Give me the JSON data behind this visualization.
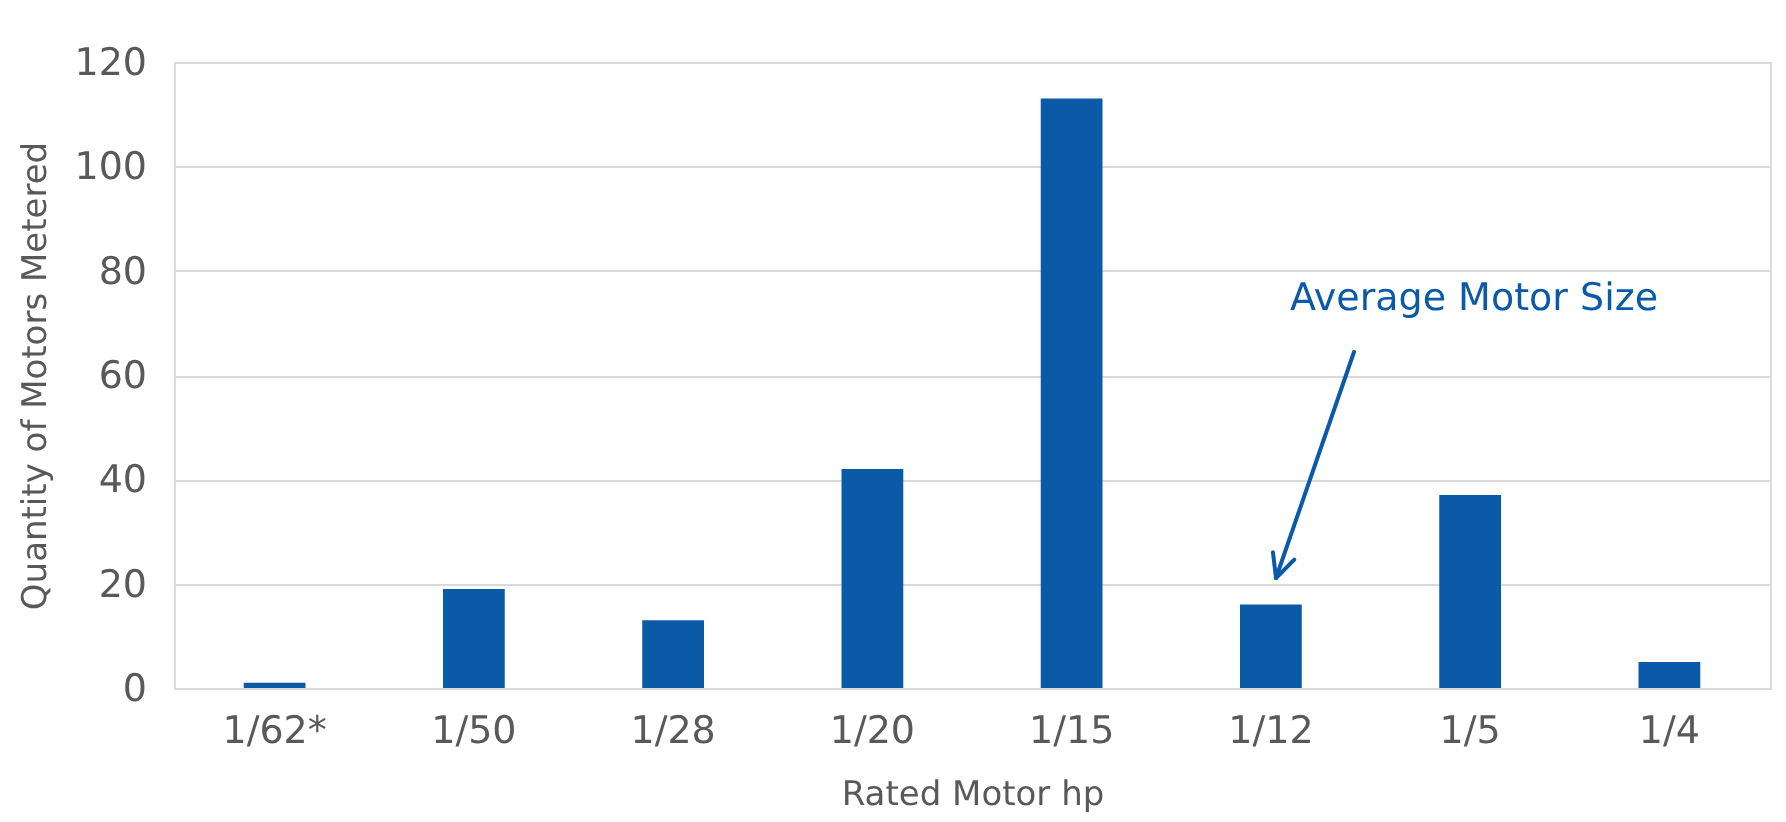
{
  "chart_data": {
    "type": "bar",
    "xlabel": "Rated Motor hp",
    "ylabel": "Quantity of Motors Metered",
    "categories": [
      "1/62*",
      "1/50",
      "1/28",
      "1/20",
      "1/15",
      "1/12",
      "1/5",
      "1/4"
    ],
    "values": [
      1,
      19,
      13,
      42,
      113,
      16,
      37,
      5
    ],
    "color": "#0b5aa8",
    "ylim": [
      0,
      120
    ],
    "yticks": [
      0,
      20,
      40,
      60,
      80,
      100,
      120
    ],
    "grid": "y",
    "annotations": [
      "Average Motor Size"
    ]
  }
}
